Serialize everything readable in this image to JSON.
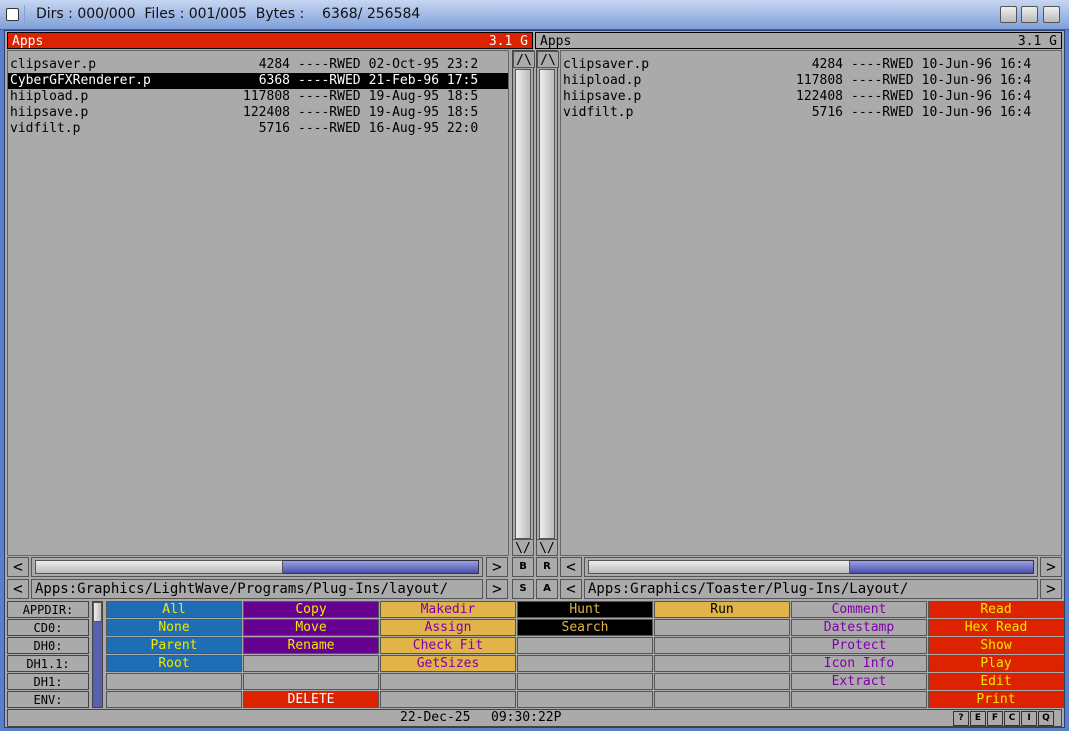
{
  "title": "Dirs : 000/000  Files : 001/005  Bytes :    6368/ 256584",
  "left": {
    "name": "Apps",
    "free": "3.1 G",
    "path": "Apps:Graphics/LightWave/Programs/Plug-Ins/layout/",
    "files": [
      {
        "name": "clipsaver.p",
        "size": "4284",
        "prot": "----RWED",
        "date": "02-Oct-95 23:2",
        "selected": false
      },
      {
        "name": "CyberGFXRenderer.p",
        "size": "6368",
        "prot": "----RWED",
        "date": "21-Feb-96 17:5",
        "selected": true
      },
      {
        "name": "hiipload.p",
        "size": "117808",
        "prot": "----RWED",
        "date": "19-Aug-95 18:5",
        "selected": false
      },
      {
        "name": "hiipsave.p",
        "size": "122408",
        "prot": "----RWED",
        "date": "19-Aug-95 18:5",
        "selected": false
      },
      {
        "name": "vidfilt.p",
        "size": "5716",
        "prot": "----RWED",
        "date": "16-Aug-95 22:0",
        "selected": false
      }
    ],
    "hscroll": 0.55
  },
  "right": {
    "name": "Apps",
    "free": "3.1 G",
    "path": "Apps:Graphics/Toaster/Plug-Ins/Layout/",
    "files": [
      {
        "name": "clipsaver.p",
        "size": "4284",
        "prot": "----RWED",
        "date": "10-Jun-96 16:4",
        "selected": false
      },
      {
        "name": "hiipload.p",
        "size": "117808",
        "prot": "----RWED",
        "date": "10-Jun-96 16:4",
        "selected": false
      },
      {
        "name": "hiipsave.p",
        "size": "122408",
        "prot": "----RWED",
        "date": "10-Jun-96 16:4",
        "selected": false
      },
      {
        "name": "vidfilt.p",
        "size": "5716",
        "prot": "----RWED",
        "date": "10-Jun-96 16:4",
        "selected": false
      }
    ],
    "hscroll": 0.58
  },
  "mid_buttons": [
    "B",
    "R",
    "S",
    "A"
  ],
  "devices": [
    "APPDIR:",
    "CD0:",
    "DH0:",
    "DH1.1:",
    "DH1:",
    "ENV:"
  ],
  "buttons": [
    [
      {
        "l": "All",
        "c": "blue"
      },
      {
        "l": "None",
        "c": "blue"
      },
      {
        "l": "Parent",
        "c": "blue"
      },
      {
        "l": "Root",
        "c": "blue"
      },
      {
        "l": "",
        "c": "grey"
      },
      {
        "l": "",
        "c": "grey"
      }
    ],
    [
      {
        "l": "Copy",
        "c": "purple"
      },
      {
        "l": "Move",
        "c": "purple"
      },
      {
        "l": "Rename",
        "c": "purple"
      },
      {
        "l": "",
        "c": "grey"
      },
      {
        "l": "",
        "c": "grey"
      },
      {
        "l": "DELETE",
        "c": "red2"
      }
    ],
    [
      {
        "l": "Makedir",
        "c": "gold"
      },
      {
        "l": "Assign",
        "c": "gold"
      },
      {
        "l": "Check Fit",
        "c": "gold"
      },
      {
        "l": "GetSizes",
        "c": "gold"
      },
      {
        "l": "",
        "c": "grey"
      },
      {
        "l": "",
        "c": "grey"
      }
    ],
    [
      {
        "l": "Hunt",
        "c": "black"
      },
      {
        "l": "Search",
        "c": "black"
      },
      {
        "l": "",
        "c": "grey"
      },
      {
        "l": "",
        "c": "grey"
      },
      {
        "l": "",
        "c": "grey"
      },
      {
        "l": "",
        "c": "grey"
      }
    ],
    [
      {
        "l": "Run",
        "c": "gold2"
      },
      {
        "l": "",
        "c": "grey"
      },
      {
        "l": "",
        "c": "grey"
      },
      {
        "l": "",
        "c": "grey"
      },
      {
        "l": "",
        "c": "grey"
      },
      {
        "l": "",
        "c": "grey"
      }
    ],
    [
      {
        "l": "Comment",
        "c": "grey"
      },
      {
        "l": "Datestamp",
        "c": "grey"
      },
      {
        "l": "Protect",
        "c": "grey"
      },
      {
        "l": "Icon Info",
        "c": "grey"
      },
      {
        "l": "Extract",
        "c": "grey"
      },
      {
        "l": "",
        "c": "grey"
      }
    ],
    [
      {
        "l": "Read",
        "c": "red"
      },
      {
        "l": "Hex Read",
        "c": "red"
      },
      {
        "l": "Show",
        "c": "red"
      },
      {
        "l": "Play",
        "c": "red"
      },
      {
        "l": "Edit",
        "c": "red"
      },
      {
        "l": "Print",
        "c": "red"
      }
    ]
  ],
  "status": {
    "date": "22-Dec-25",
    "time": "09:30:22P",
    "small_buttons": [
      "?",
      "E",
      "F",
      "C",
      "I",
      "Q"
    ]
  }
}
